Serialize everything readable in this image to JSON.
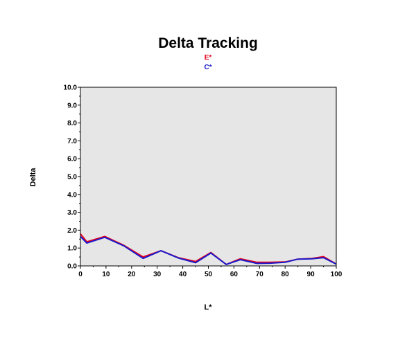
{
  "chart_data": {
    "type": "line",
    "title": "Delta Tracking",
    "xlabel": "L*",
    "ylabel": "Delta",
    "xlim": [
      0,
      100
    ],
    "ylim": [
      0,
      10
    ],
    "x_ticks": [
      "0",
      "10",
      "20",
      "30",
      "40",
      "50",
      "60",
      "70",
      "80",
      "90",
      "100"
    ],
    "y_ticks": [
      "0.0",
      "1.0",
      "2.0",
      "3.0",
      "4.0",
      "5.0",
      "6.0",
      "7.0",
      "8.0",
      "9.0",
      "10.0"
    ],
    "grid": false,
    "legend_position": "top-center",
    "background_color": "#e6e6e6",
    "series": [
      {
        "name": "E*",
        "color": "#e8001c",
        "x": [
          0,
          2.5,
          9.5,
          17,
          24.5,
          31.5,
          38.5,
          45,
          51,
          57,
          62.5,
          69,
          74,
          80,
          85,
          90.5,
          95,
          100
        ],
        "y": [
          1.8,
          1.35,
          1.65,
          1.15,
          0.5,
          0.85,
          0.45,
          0.25,
          0.75,
          0.08,
          0.4,
          0.2,
          0.2,
          0.22,
          0.38,
          0.42,
          0.52,
          0.1
        ]
      },
      {
        "name": "C*",
        "color": "#1a1acc",
        "x": [
          0,
          2.5,
          9.5,
          17,
          24.5,
          31.5,
          38.5,
          45,
          51,
          57,
          62.5,
          69,
          74,
          80,
          85,
          90.5,
          95,
          100
        ],
        "y": [
          1.65,
          1.28,
          1.6,
          1.12,
          0.42,
          0.85,
          0.43,
          0.18,
          0.72,
          0.08,
          0.35,
          0.14,
          0.15,
          0.2,
          0.38,
          0.4,
          0.46,
          0.1
        ]
      }
    ]
  }
}
